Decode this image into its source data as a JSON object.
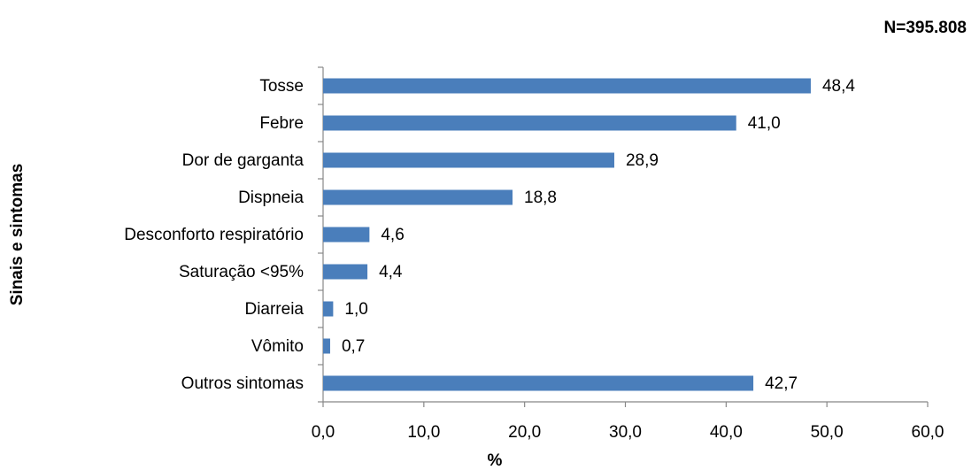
{
  "chart_data": {
    "type": "bar",
    "orientation": "horizontal",
    "note": "N=395.808",
    "xlabel": "%",
    "ylabel": "Sinais e sintomas",
    "categories": [
      "Tosse",
      "Febre",
      "Dor de garganta",
      "Dispneia",
      "Desconforto respiratório",
      "Saturação <95%",
      "Diarreia",
      "Vômito",
      "Outros sintomas"
    ],
    "values": [
      48.4,
      41.0,
      28.9,
      18.8,
      4.6,
      4.4,
      1.0,
      0.7,
      42.7
    ],
    "value_labels": [
      "48,4",
      "41,0",
      "28,9",
      "18,8",
      "4,6",
      "4,4",
      "1,0",
      "0,7",
      "42,7"
    ],
    "color": "#4a7ebb",
    "xlim": [
      0,
      60
    ],
    "xticks": [
      {
        "value": 0,
        "label": "0,0"
      },
      {
        "value": 10,
        "label": "10,0"
      },
      {
        "value": 20,
        "label": "20,0"
      },
      {
        "value": 30,
        "label": "30,0"
      },
      {
        "value": 40,
        "label": "40,0"
      },
      {
        "value": 50,
        "label": "50,0"
      },
      {
        "value": 60,
        "label": "60,0"
      }
    ],
    "grid": false
  }
}
